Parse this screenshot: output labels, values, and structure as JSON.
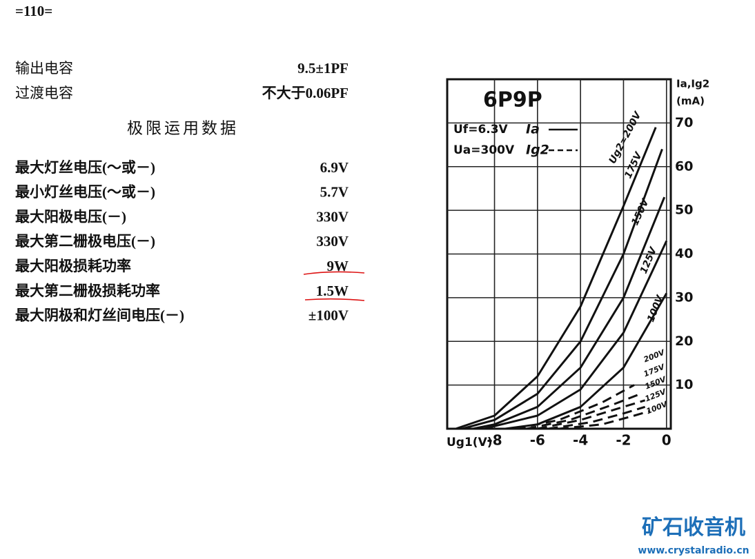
{
  "page_number": "=110=",
  "specs": [
    [
      "输出电容",
      "9.5±1PF"
    ],
    [
      "过渡电容",
      "不大于0.06PF"
    ]
  ],
  "limits_title": "极限运用数据",
  "limits": [
    [
      "最大灯丝电压(～或－)",
      "6.9V"
    ],
    [
      "最小灯丝电压(～或－)",
      "5.7V"
    ],
    [
      "最大阳极电压(－)",
      "330V"
    ],
    [
      "最大第二栅极电压(－)",
      "330V"
    ],
    [
      "最大阳极损耗功率",
      "9W"
    ],
    [
      "最大第二栅极损耗功率",
      "1.5W"
    ],
    [
      "最大阴极和灯丝间电压(－)",
      "±100V"
    ]
  ],
  "watermark": {
    "title": "矿石收音机",
    "url": "www.crystalradio.cn"
  },
  "chart_data": {
    "type": "line",
    "title": "6P9P",
    "annotations": [
      "Uf=6.3V",
      "Ua=300V"
    ],
    "legend": [
      {
        "label": "Ia",
        "style": "solid"
      },
      {
        "label": "Ig2",
        "style": "dashed"
      }
    ],
    "x_label": "Ug1(V)",
    "y_label": [
      "Ia,Ig2",
      "(mA)"
    ],
    "xlim": [
      -10.2,
      0.2
    ],
    "ylim": [
      0,
      80
    ],
    "xticks": [
      -8,
      -6,
      -4,
      -2,
      0
    ],
    "yticks": [
      10,
      20,
      30,
      40,
      50,
      60,
      70
    ],
    "grid": true,
    "series": [
      {
        "name": "Ug2=200V",
        "style": "solid",
        "color": "#111111",
        "x": [
          -9.8,
          -8,
          -6,
          -4,
          -2,
          -0.5
        ],
        "values": [
          0,
          3,
          12,
          28,
          51,
          69
        ]
      },
      {
        "name": "175V",
        "style": "solid",
        "color": "#111111",
        "x": [
          -9.5,
          -8,
          -6,
          -4,
          -2,
          -0.2
        ],
        "values": [
          0,
          2,
          8,
          20,
          40,
          64
        ]
      },
      {
        "name": "150V",
        "style": "solid",
        "color": "#111111",
        "x": [
          -9,
          -8,
          -6,
          -4,
          -2,
          -0.1
        ],
        "values": [
          0,
          1,
          5,
          14,
          30,
          53
        ]
      },
      {
        "name": "125V",
        "style": "solid",
        "color": "#111111",
        "x": [
          -8.5,
          -6,
          -4,
          -2,
          0
        ],
        "values": [
          0,
          3,
          9,
          22,
          43
        ]
      },
      {
        "name": "100V",
        "style": "solid",
        "color": "#111111",
        "x": [
          -7.5,
          -6,
          -4,
          -2,
          0
        ],
        "values": [
          0,
          1,
          5,
          14,
          31
        ]
      },
      {
        "name": "200V",
        "style": "dashed",
        "color": "#111111",
        "x": [
          -7,
          -5,
          -3,
          -1.5
        ],
        "values": [
          0,
          2,
          6,
          10
        ]
      },
      {
        "name": "175V",
        "style": "dashed",
        "color": "#111111",
        "x": [
          -6.5,
          -4.5,
          -2.5,
          -1.2
        ],
        "values": [
          0,
          2,
          5.5,
          8
        ]
      },
      {
        "name": "150V",
        "style": "dashed",
        "color": "#111111",
        "x": [
          -6,
          -4,
          -2,
          -1
        ],
        "values": [
          0,
          2,
          5,
          6.5
        ]
      },
      {
        "name": "125V",
        "style": "dashed",
        "color": "#111111",
        "x": [
          -5.5,
          -3.5,
          -2,
          -1
        ],
        "values": [
          0,
          1.5,
          3.5,
          5
        ]
      },
      {
        "name": "100V",
        "style": "dashed",
        "color": "#111111",
        "x": [
          -5,
          -3,
          -1.5,
          -0.8
        ],
        "values": [
          0,
          1,
          3,
          4
        ]
      }
    ]
  }
}
